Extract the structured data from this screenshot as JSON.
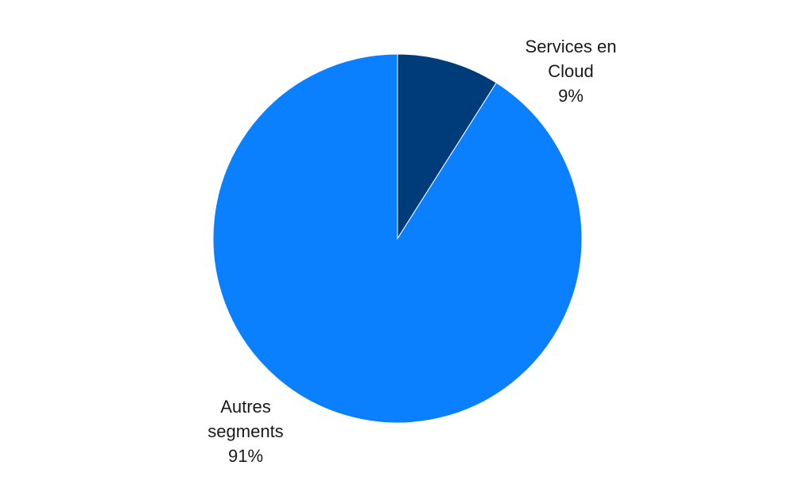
{
  "chart_data": {
    "type": "pie",
    "title": "",
    "slices": [
      {
        "label_lines": [
          "Services  en",
          "Cloud"
        ],
        "value": 9,
        "value_label": "9%",
        "color": "#003b7a"
      },
      {
        "label_lines": [
          "Autres",
          "segments"
        ],
        "value": 91,
        "value_label": "91%",
        "color": "#0a80fe"
      }
    ],
    "start_angle_deg": 0,
    "direction": "clockwise",
    "legend": "none",
    "data_labels": "outside"
  }
}
